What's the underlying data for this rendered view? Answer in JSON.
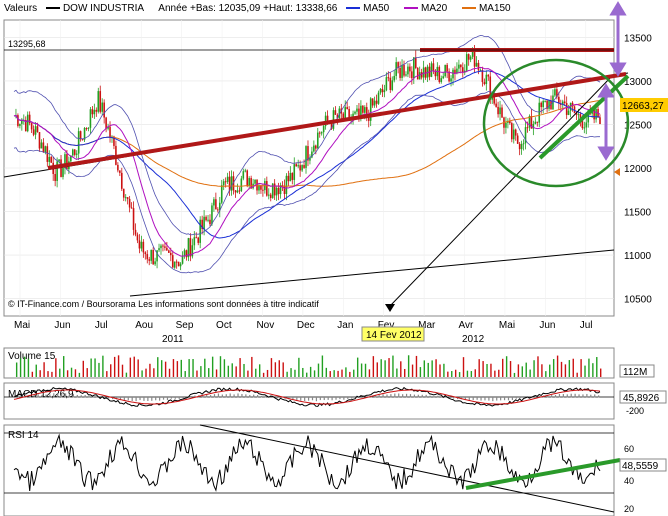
{
  "header": {
    "label": "Valeurs",
    "instrument": "DOW INDUSTRIA",
    "range_text": "Année +Bas: 12035,09 +Haut: 13338,66",
    "ma50": "MA50",
    "ma20": "MA20",
    "ma150": "MA150"
  },
  "colors": {
    "bull": "#22a022",
    "bear": "#cc1111",
    "ma50": "#1a2fd6",
    "ma20": "#b010c0",
    "ma150": "#e07010",
    "trend_red": "#b01818",
    "trend_green": "#2a9a2a",
    "circle": "#2a8a2a",
    "arrow": "#9a6ad0",
    "price_box": "#ffcc00",
    "date_box": "#ffff66"
  },
  "annotations": {
    "resistance_value": "13295,68",
    "last_price": "12663,27",
    "event_date": "14 Fev 2012",
    "footer": "© IT-Finance.com / Boursorama Les informations sont données à titre indicatif"
  },
  "volume_panel": {
    "label": "Volume 15",
    "last_value": "112M"
  },
  "macd_panel": {
    "label": "MACD 12,26,9",
    "last_value": "45,8926",
    "ticks": [
      "0",
      "-200"
    ]
  },
  "rsi_panel": {
    "label": "RSI 14",
    "last_value": "48,5559",
    "ticks": [
      "60",
      "40",
      "20"
    ]
  },
  "chart_data": {
    "type": "candlestick",
    "title": "DOW INDUSTRIA",
    "y_ticks": [
      10500,
      11000,
      11500,
      12000,
      12500,
      13000,
      13500
    ],
    "ylim": [
      10300,
      13700
    ],
    "x_months": [
      "Mai",
      "Jun",
      "Jul",
      "Aou",
      "Sep",
      "Oct",
      "Nov",
      "Dec",
      "Jan",
      "Fev",
      "Mar",
      "Avr",
      "Mai",
      "Jun",
      "Jul"
    ],
    "x_years": [
      "2011",
      "2012"
    ],
    "close_series": [
      {
        "date": "2011-05",
        "close": 12600
      },
      {
        "date": "2011-06",
        "close": 12000
      },
      {
        "date": "2011-07",
        "close": 12700
      },
      {
        "date": "2011-08",
        "close": 11200
      },
      {
        "date": "2011-09",
        "close": 10800
      },
      {
        "date": "2011-10",
        "close": 11900
      },
      {
        "date": "2011-11",
        "close": 11700
      },
      {
        "date": "2011-12",
        "close": 12200
      },
      {
        "date": "2012-01",
        "close": 12600
      },
      {
        "date": "2012-02",
        "close": 12950
      },
      {
        "date": "2012-03",
        "close": 13200
      },
      {
        "date": "2012-04",
        "close": 13150
      },
      {
        "date": "2012-05",
        "close": 12400
      },
      {
        "date": "2012-06",
        "close": 12700
      },
      {
        "date": "2012-07",
        "close": 12663
      }
    ]
  }
}
